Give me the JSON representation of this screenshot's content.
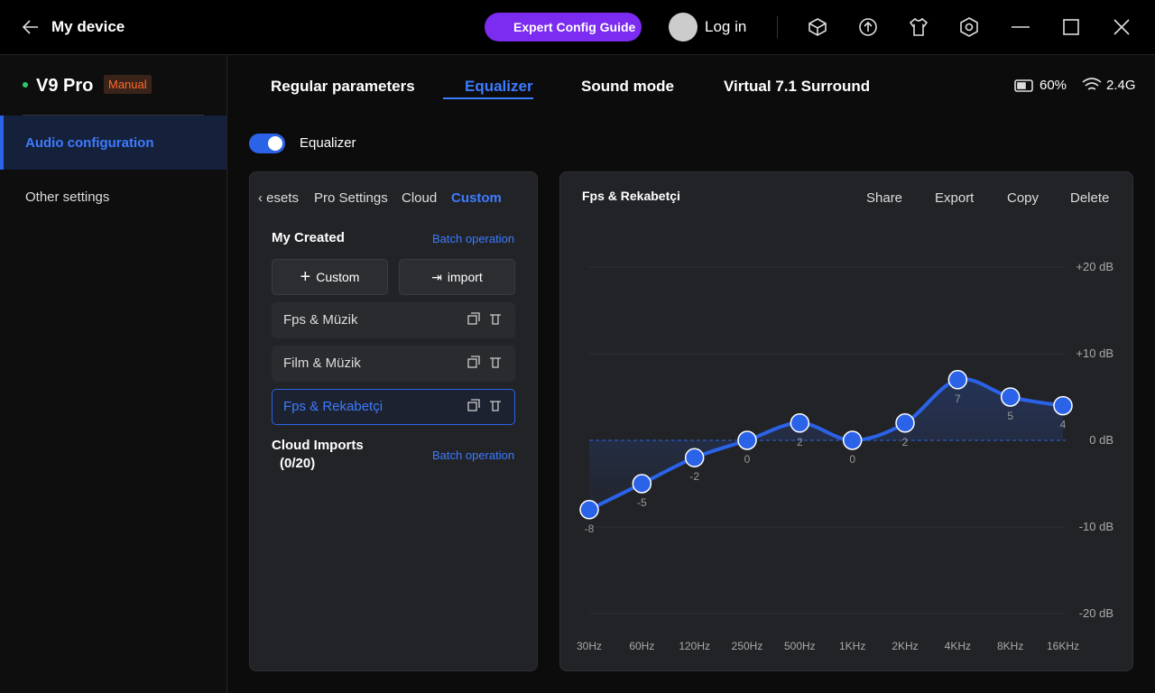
{
  "header": {
    "title": "My device",
    "guide": "Expert Config Guide",
    "login": "Log in"
  },
  "sidebar": {
    "device": "V9 Pro",
    "badge": "Manual",
    "items": [
      "Audio configuration",
      "Other settings"
    ]
  },
  "tabs": [
    "Regular parameters",
    "Equalizer",
    "Sound mode",
    "Virtual 7.1 Surround"
  ],
  "status": {
    "battery": "60%",
    "signal": "2.4G"
  },
  "equalizer_toggle": "Equalizer",
  "presets": {
    "tabs": [
      "esets",
      "Pro Settings",
      "Cloud",
      "Custom"
    ],
    "my_created": "My Created",
    "batch": "Batch operation",
    "buttons": [
      "Custom",
      "import"
    ],
    "items": [
      "Fps & Müzik",
      "Film & Müzik",
      "Fps & Rekabetçi"
    ],
    "cloud_imports": "Cloud Imports",
    "cloud_count": "(0/20)",
    "cloud_batch": "Batch operation"
  },
  "eq_panel": {
    "actions": [
      "Share",
      "Export",
      "Copy",
      "Delete"
    ]
  },
  "chart_data": {
    "type": "line",
    "title": "Fps & Rekabetçi",
    "categories": [
      "30Hz",
      "60Hz",
      "120Hz",
      "250Hz",
      "500Hz",
      "1KHz",
      "2KHz",
      "4KHz",
      "8KHz",
      "16KHz"
    ],
    "values": [
      -8,
      -5,
      -2,
      0,
      2,
      0,
      2,
      7,
      5,
      4
    ],
    "color": "#2b63e8",
    "ylim": [
      -20,
      20
    ],
    "yticks": [
      {
        "value": 20,
        "label": "+20 dB"
      },
      {
        "value": 10,
        "label": "+10 dB"
      },
      {
        "value": 0,
        "label": "0 dB"
      },
      {
        "value": -10,
        "label": "-10 dB"
      },
      {
        "value": -20,
        "label": "-20 dB"
      }
    ],
    "grid": true
  }
}
